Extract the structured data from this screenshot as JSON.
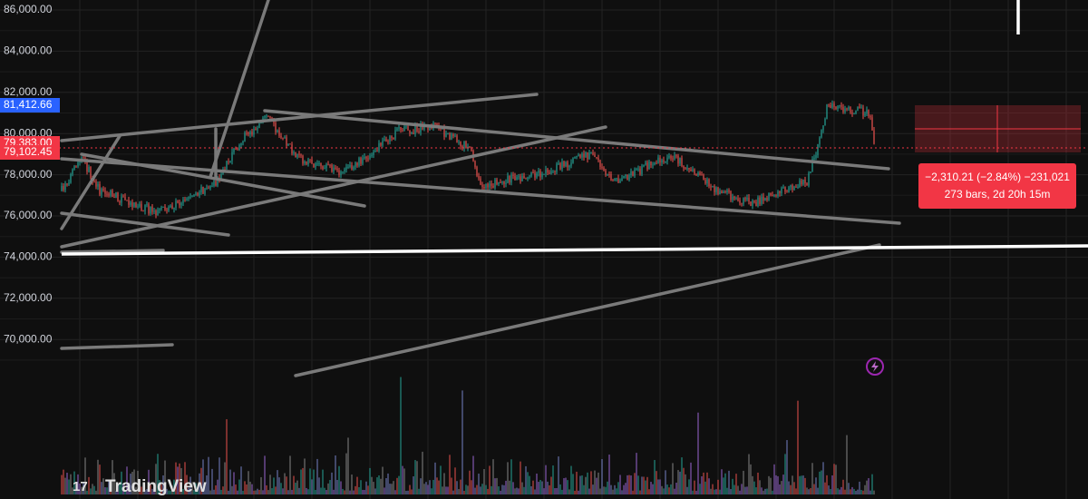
{
  "price_axis": {
    "labels": [
      "86,000.00",
      "84,000.00",
      "82,000.00",
      "80,000.00",
      "78,000.00",
      "76,000.00",
      "74,000.00",
      "72,000.00",
      "70,000.00"
    ]
  },
  "price_tags": [
    {
      "label": "81,412.66",
      "color": "#2962ff"
    },
    {
      "label": "79,383.00",
      "color": "#f23645"
    },
    {
      "label": "79,102.45",
      "color": "#f23645"
    }
  ],
  "measure": {
    "line1": "−2,310.21 (−2.84%) −231,021",
    "line2": "273 bars, 2d 20h 15m"
  },
  "logo": "TradingView"
}
